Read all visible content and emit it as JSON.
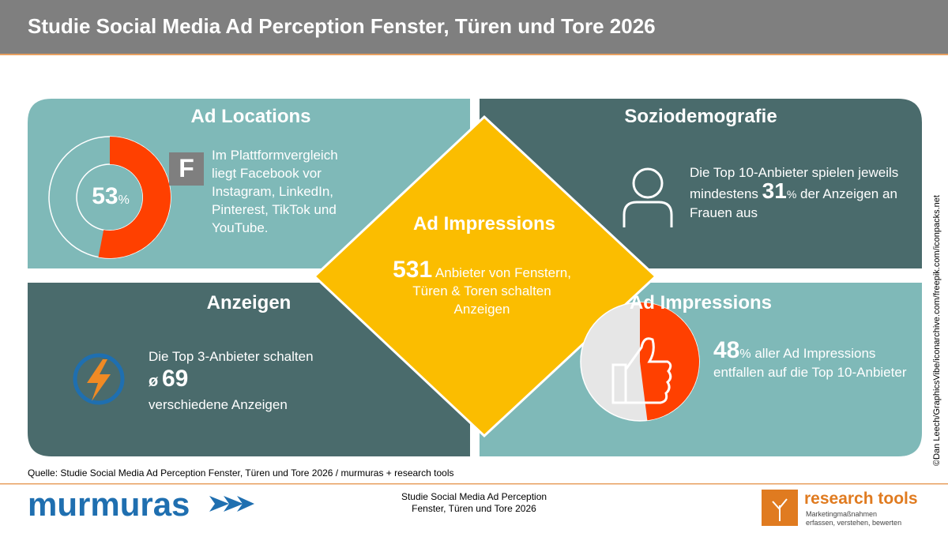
{
  "header": {
    "title": "Studie Social Media Ad Perception Fenster, Türen und Tore 2026"
  },
  "ad_locations": {
    "title": "Ad Locations",
    "value": 53,
    "unit": "%",
    "icon": "F",
    "text": "Im Plattformvergleich liegt Facebook vor Instagram, LinkedIn, Pinterest, TikTok und YouTube."
  },
  "soziodemografie": {
    "title": "Soziodemografie",
    "text_before": "Die Top 10-Anbieter spielen jeweils mindestens",
    "value": 31,
    "unit": "%",
    "text_after": "der Anzeigen an Frauen aus"
  },
  "center": {
    "title": "Ad Impressions",
    "value": 531,
    "text": "Anbieter von Fenstern, Türen & Toren schalten Anzeigen"
  },
  "anzeigen": {
    "title": "Anzeigen",
    "text_before": "Die Top 3-Anbieter schalten",
    "symbol": "ø",
    "value": 69,
    "text_after": "verschiedene Anzeigen"
  },
  "ad_impressions": {
    "title": "Ad Impressions",
    "value": 48,
    "unit": "%",
    "text": "aller Ad Impressions entfallen auf die Top 10-Anbieter"
  },
  "source": "Quelle: Studie Social Media Ad Perception Fenster, Türen und Tore 2026 / murmuras + research tools",
  "credit": "©Dan Leech/GraphicsVibe/iconarchive.com/freepik.com/iconpacks.net",
  "footer": {
    "left_logo": "murmuras",
    "center_line1": "Studie Social Media Ad Perception",
    "center_line2": "Fenster, Türen und Tore 2026",
    "right_logo": "research tools",
    "tagline_line1": "Marketingmaßnahmen",
    "tagline_line2": "erfassen, verstehen, bewerten"
  }
}
